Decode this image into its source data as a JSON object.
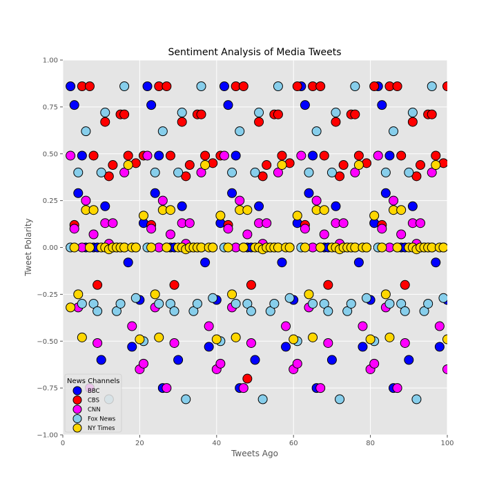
{
  "chart_data": {
    "type": "scatter",
    "title": "Sentiment Analysis of Media Tweets",
    "xlabel": "Tweets Ago",
    "ylabel": "Tweet Polarity",
    "xlim": [
      0,
      100
    ],
    "ylim": [
      -1.0,
      1.0
    ],
    "x_ticks": [
      "0",
      "20",
      "40",
      "60",
      "80",
      "100"
    ],
    "y_ticks": [
      "−1.00",
      "−0.75",
      "−0.50",
      "−0.25",
      "0.00",
      "0.25",
      "0.50",
      "0.75",
      "1.00"
    ],
    "grid": true,
    "legend": {
      "title": "News Channels",
      "placement": "lower-left"
    },
    "series": [
      {
        "name": "BBC",
        "color": "#0000ff",
        "x": [
          2,
          3,
          4,
          5,
          6,
          7,
          8,
          9,
          10,
          11,
          12,
          13,
          14,
          15,
          16,
          17,
          18,
          19,
          20,
          21,
          22,
          23,
          24,
          25,
          26,
          27,
          28,
          29,
          30,
          31,
          32,
          33,
          34,
          35,
          36,
          37,
          38,
          39,
          40,
          41,
          42,
          43,
          44,
          45,
          46,
          47,
          48,
          49,
          50,
          51,
          52,
          53,
          54,
          55,
          56,
          57,
          58,
          59,
          60,
          61,
          62,
          63,
          64,
          65,
          66,
          67,
          68,
          69,
          70,
          71,
          72,
          73,
          74,
          75,
          76,
          77,
          78,
          79,
          80,
          81,
          82,
          83,
          84,
          85,
          86,
          87,
          88,
          89,
          90,
          91,
          92,
          93,
          94,
          95,
          96,
          97,
          98,
          99,
          100
        ],
        "y": [
          0.86,
          0.76,
          0.29,
          0.49,
          0,
          0,
          0,
          0,
          -0.6,
          0.22,
          0,
          0,
          0,
          0,
          0,
          -0.08,
          -0.53,
          0,
          -0.28,
          0.13,
          0.86,
          0.76,
          0.29,
          0.49,
          -0.75,
          0,
          0,
          0,
          -0.6,
          0.22,
          0,
          0,
          0,
          0,
          0,
          -0.08,
          -0.53,
          0,
          -0.28,
          0.13,
          0.86,
          0.76,
          0.29,
          0.49,
          -0.75,
          0,
          0,
          0,
          -0.6,
          0.22,
          0,
          0,
          0,
          0,
          0,
          -0.08,
          -0.53,
          0,
          -0.28,
          0.13,
          0.86,
          0.76,
          0.29,
          0.49,
          -0.75,
          0,
          0,
          0,
          -0.6,
          0.22,
          0,
          0,
          0,
          0,
          0,
          -0.08,
          -0.53,
          0,
          -0.28,
          0.13,
          0.86,
          0.76,
          0.29,
          0.49,
          -0.75,
          0,
          0,
          0,
          -0.6,
          0.22,
          0,
          0,
          0,
          0,
          0,
          -0.08,
          -0.53,
          0,
          -0.28
        ]
      },
      {
        "name": "CBS",
        "color": "#ff0000",
        "x": [
          3,
          5,
          7,
          8,
          9,
          11,
          12,
          13,
          15,
          16,
          17,
          19,
          21,
          23,
          25,
          27,
          28,
          29,
          31,
          32,
          33,
          35,
          36,
          37,
          39,
          41,
          43,
          45,
          47,
          48,
          49,
          51,
          52,
          53,
          55,
          56,
          57,
          59,
          61,
          63,
          65,
          67,
          68,
          69,
          71,
          72,
          73,
          75,
          76,
          77,
          79,
          81,
          83,
          85,
          87,
          88,
          89,
          91,
          92,
          93,
          95,
          96,
          97,
          99,
          100
        ],
        "y": [
          0.12,
          0.86,
          0.86,
          0.49,
          -0.2,
          0.67,
          0.38,
          0.44,
          0.71,
          0.71,
          0.49,
          0.45,
          0.49,
          0.12,
          0.86,
          0.86,
          0.49,
          -0.2,
          0.67,
          0.38,
          0.44,
          0.71,
          0.71,
          0.49,
          0.45,
          0.49,
          0.12,
          0.86,
          0.86,
          -0.7,
          -0.2,
          0.67,
          0.38,
          0.44,
          0.71,
          0.71,
          0.49,
          0.45,
          0.86,
          0.12,
          0.86,
          0.86,
          0.49,
          -0.2,
          0.67,
          0.38,
          0.44,
          0.71,
          0.71,
          0.49,
          0.45,
          0.86,
          0.12,
          0.86,
          0.86,
          0.49,
          -0.2,
          0.67,
          0.38,
          0.44,
          0.71,
          0.71,
          0.49,
          0.45,
          0.86
        ]
      },
      {
        "name": "CNN",
        "color": "#ff00ff",
        "x": [
          2,
          3,
          4,
          5,
          6,
          7,
          8,
          9,
          11,
          12,
          13,
          16,
          18,
          20,
          21,
          22,
          23,
          24,
          25,
          26,
          27,
          28,
          29,
          31,
          32,
          33,
          36,
          38,
          40,
          41,
          42,
          43,
          44,
          45,
          46,
          47,
          48,
          49,
          51,
          52,
          53,
          56,
          58,
          60,
          61,
          62,
          63,
          64,
          65,
          66,
          67,
          68,
          69,
          71,
          72,
          73,
          76,
          78,
          80,
          81,
          82,
          83,
          84,
          85,
          86,
          87,
          88,
          89,
          91,
          92,
          93,
          96,
          98,
          100
        ],
        "y": [
          0.49,
          0.1,
          -0.32,
          0,
          0.25,
          -0.75,
          0.07,
          -0.51,
          0.13,
          0.02,
          0.13,
          0.4,
          -0.42,
          -0.65,
          -0.62,
          0.49,
          0.1,
          -0.32,
          0,
          0.25,
          -0.75,
          0.07,
          -0.51,
          0.13,
          0.02,
          0.13,
          0.4,
          -0.42,
          -0.65,
          -0.62,
          0.49,
          0.1,
          -0.32,
          0,
          0.25,
          -0.75,
          0.07,
          -0.51,
          0.13,
          0.02,
          0.13,
          0.4,
          -0.42,
          -0.65,
          -0.62,
          0.49,
          0.1,
          -0.32,
          0,
          0.25,
          -0.75,
          0.07,
          -0.51,
          0.13,
          0.02,
          0.13,
          0.4,
          -0.42,
          -0.65,
          -0.62,
          0.49,
          0.1,
          -0.32,
          0,
          0.25,
          -0.75,
          0.07,
          -0.51,
          0.13,
          0.02,
          0.13,
          0.4,
          -0.42,
          -0.65
        ]
      },
      {
        "name": "Fox News",
        "color": "#87ceeb",
        "x": [
          2,
          4,
          5,
          6,
          8,
          9,
          10,
          11,
          12,
          14,
          15,
          16,
          19,
          21,
          22,
          24,
          25,
          26,
          28,
          29,
          30,
          31,
          32,
          34,
          35,
          36,
          39,
          41,
          42,
          44,
          45,
          46,
          48,
          49,
          50,
          51,
          52,
          54,
          55,
          56,
          59,
          61,
          62,
          64,
          65,
          66,
          68,
          69,
          70,
          71,
          72,
          74,
          75,
          76,
          79,
          81,
          82,
          84,
          85,
          86,
          88,
          89,
          90,
          91,
          92,
          94,
          95,
          96,
          99
        ],
        "y": [
          0,
          0.4,
          -0.3,
          0.62,
          -0.3,
          -0.34,
          0.4,
          0.72,
          -0.81,
          -0.34,
          -0.3,
          0.86,
          -0.27,
          -0.5,
          0,
          0.4,
          -0.3,
          0.62,
          -0.3,
          -0.34,
          0.4,
          0.72,
          -0.81,
          -0.34,
          -0.3,
          0.86,
          -0.27,
          -0.5,
          0,
          0.4,
          -0.3,
          0.62,
          -0.3,
          -0.34,
          0.4,
          0.72,
          -0.81,
          -0.34,
          -0.3,
          0.86,
          -0.27,
          -0.5,
          0,
          0.4,
          -0.3,
          0.62,
          -0.3,
          -0.34,
          0.4,
          0.72,
          -0.81,
          -0.34,
          -0.3,
          0.86,
          -0.27,
          -0.5,
          0,
          0.4,
          -0.3,
          0.62,
          -0.3,
          -0.34,
          0.4,
          0.72,
          -0.81,
          -0.34,
          -0.3,
          0.86,
          -0.27
        ]
      },
      {
        "name": "NY Times",
        "color": "#ffd700",
        "x": [
          2,
          3,
          4,
          5,
          6,
          7,
          8,
          10,
          11,
          12,
          13,
          14,
          15,
          16,
          17,
          18,
          19,
          20,
          21,
          23,
          24,
          25,
          26,
          27,
          28,
          30,
          31,
          32,
          33,
          34,
          35,
          36,
          37,
          38,
          39,
          40,
          41,
          43,
          44,
          45,
          46,
          47,
          48,
          50,
          51,
          52,
          53,
          54,
          55,
          56,
          57,
          58,
          59,
          60,
          61,
          63,
          64,
          65,
          66,
          67,
          68,
          70,
          71,
          72,
          73,
          74,
          75,
          76,
          77,
          78,
          79,
          80,
          81,
          83,
          84,
          85,
          86,
          87,
          88,
          90,
          91,
          92,
          93,
          94,
          95,
          96,
          97,
          98,
          99,
          100
        ],
        "y": [
          -0.32,
          0,
          -0.25,
          -0.48,
          0.2,
          0,
          0.2,
          0,
          0,
          -0.01,
          0,
          0,
          0,
          0,
          0.44,
          0,
          0,
          -0.49,
          0.17,
          0,
          -0.25,
          -0.48,
          0.2,
          0,
          0.2,
          0,
          0,
          -0.01,
          0,
          0,
          0,
          0,
          0.44,
          0,
          0,
          -0.49,
          0.17,
          0,
          -0.25,
          -0.48,
          0.2,
          0,
          0.2,
          0,
          0,
          -0.01,
          0,
          0,
          0,
          0,
          0.44,
          0,
          0,
          -0.49,
          0.17,
          0,
          -0.25,
          -0.48,
          0.2,
          0,
          0.2,
          0,
          0,
          -0.01,
          0,
          0,
          0,
          0,
          0.44,
          0,
          0,
          -0.49,
          0.17,
          0,
          -0.25,
          -0.48,
          0.2,
          0,
          0.2,
          0,
          0,
          -0.01,
          0,
          0,
          0,
          0,
          0.44,
          0,
          0,
          -0.49
        ]
      }
    ]
  }
}
